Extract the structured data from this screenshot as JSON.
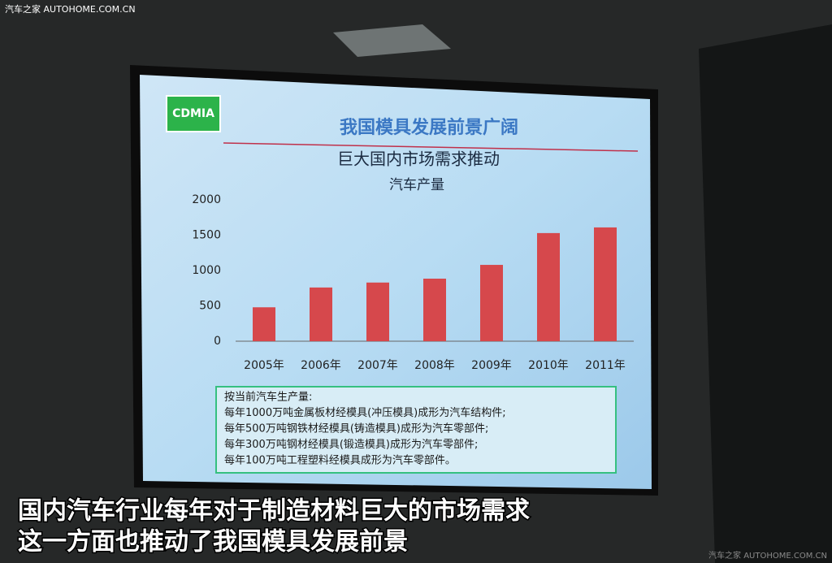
{
  "watermark": {
    "top": "汽车之家 AUTOHOME.COM.CN",
    "bottom": "汽车之家 AUTOHOME.COM.CN"
  },
  "slide": {
    "logo": "CDMIA",
    "title": "我国模具发展前景广阔",
    "notes": [
      "按当前汽车生产量:",
      "每年1000万吨金属板材经模具(冲压模具)成形为汽车结构件;",
      "每年500万吨钢铁材经模具(铸造模具)成形为汽车零部件;",
      "每年300万吨钢材经模具(锻造模具)成形为汽车零部件;",
      "每年100万吨工程塑料经模具成形为汽车零部件。"
    ]
  },
  "chart_data": {
    "type": "bar",
    "title": "巨大国内市场需求推动",
    "subtitle": "汽车产量",
    "categories": [
      "2005年",
      "2006年",
      "2007年",
      "2008年",
      "2009年",
      "2010年",
      "2011年"
    ],
    "values": [
      480,
      760,
      830,
      885,
      1080,
      1530,
      1610
    ],
    "color": "#d6484c",
    "ylim": [
      0,
      2000
    ],
    "yticks": [
      0,
      500,
      1000,
      1500,
      2000
    ],
    "grid": false
  },
  "captions": [
    "国内汽车行业每年对于制造材料巨大的市场需求",
    "这一方面也推动了我国模具发展前景"
  ]
}
